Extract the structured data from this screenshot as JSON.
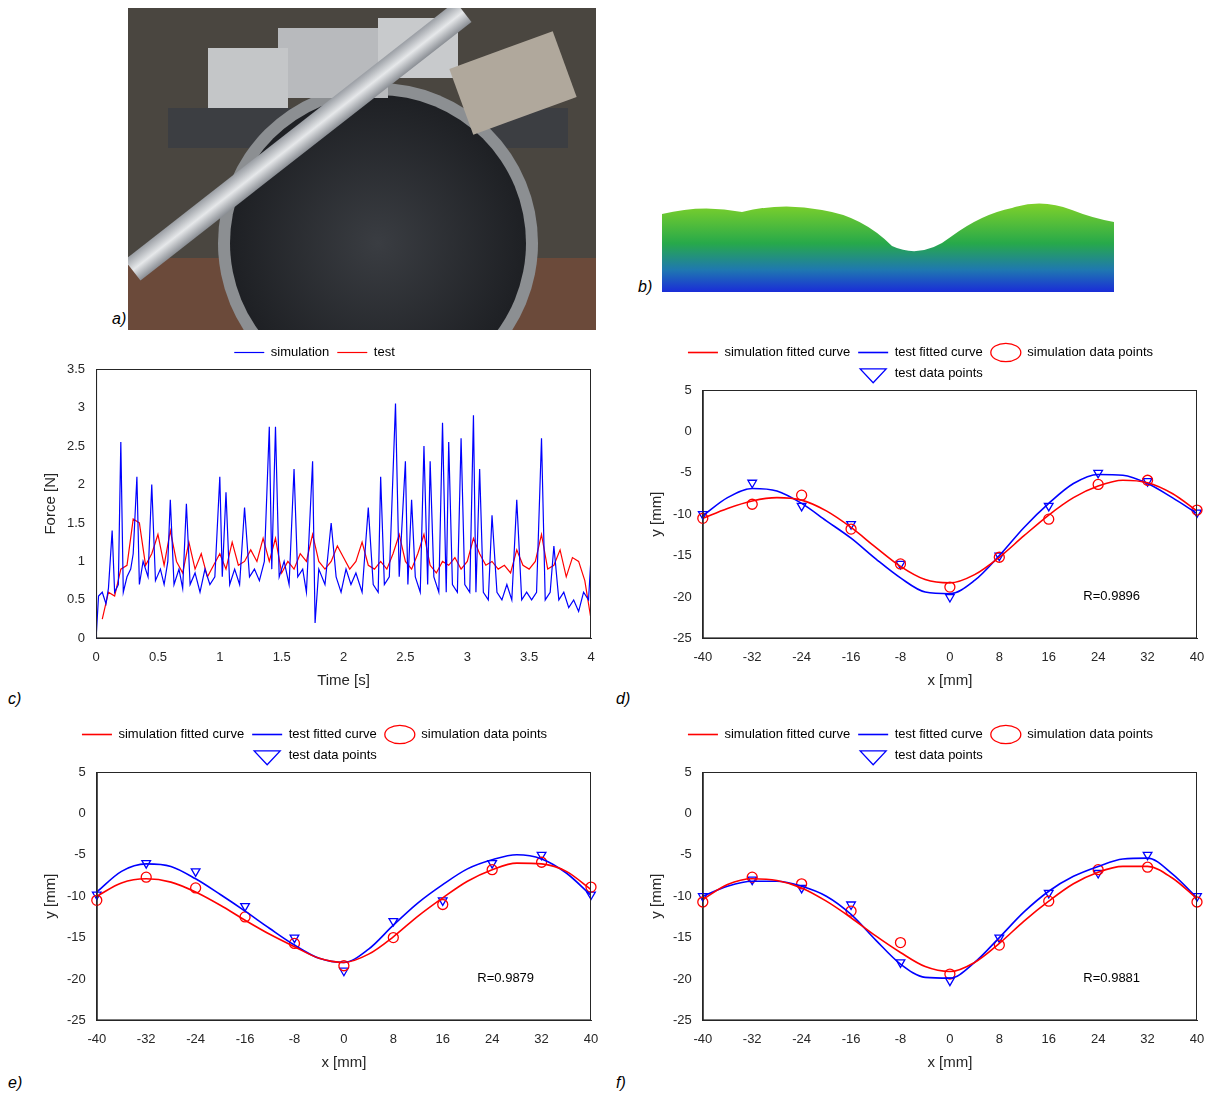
{
  "images": [
    {
      "panel": "a)"
    },
    {
      "panel": "b)"
    }
  ],
  "chart_data": [
    {
      "panel": "c)",
      "type": "line",
      "xlabel": "Time [s]",
      "ylabel": "Force [N]",
      "xlim": [
        0,
        4
      ],
      "xticks": [
        0,
        0.5,
        1,
        1.5,
        2,
        2.5,
        3,
        3.5,
        4
      ],
      "ylim": [
        0,
        3.5
      ],
      "yticks": [
        0,
        0.5,
        1,
        1.5,
        2,
        2.5,
        3,
        3.5
      ],
      "grid": false,
      "legend": "top",
      "series": [
        {
          "name": "simulation",
          "color": "#0000ff",
          "type": "line",
          "line_style": "solid",
          "x": [
            0,
            0.02,
            0.05,
            0.08,
            0.1,
            0.13,
            0.15,
            0.18,
            0.2,
            0.22,
            0.25,
            0.28,
            0.3,
            0.33,
            0.35,
            0.38,
            0.42,
            0.45,
            0.48,
            0.52,
            0.55,
            0.58,
            0.6,
            0.63,
            0.67,
            0.7,
            0.73,
            0.76,
            0.8,
            0.84,
            0.88,
            0.92,
            0.96,
            1.0,
            1.02,
            1.05,
            1.08,
            1.12,
            1.16,
            1.2,
            1.24,
            1.28,
            1.32,
            1.36,
            1.4,
            1.42,
            1.45,
            1.48,
            1.52,
            1.56,
            1.6,
            1.63,
            1.67,
            1.7,
            1.75,
            1.77,
            1.8,
            1.85,
            1.9,
            1.94,
            1.98,
            2.02,
            2.06,
            2.1,
            2.15,
            2.2,
            2.24,
            2.28,
            2.3,
            2.33,
            2.37,
            2.42,
            2.45,
            2.5,
            2.52,
            2.55,
            2.58,
            2.62,
            2.65,
            2.68,
            2.7,
            2.73,
            2.77,
            2.8,
            2.83,
            2.85,
            2.88,
            2.92,
            2.95,
            2.98,
            3.02,
            3.05,
            3.07,
            3.1,
            3.13,
            3.17,
            3.2,
            3.24,
            3.28,
            3.32,
            3.36,
            3.4,
            3.44,
            3.48,
            3.52,
            3.56,
            3.6,
            3.63,
            3.67,
            3.7,
            3.74,
            3.78,
            3.82,
            3.86,
            3.9,
            3.94,
            3.98,
            4.0
          ],
          "values": [
            0,
            0.55,
            0.6,
            0.45,
            0.65,
            1.4,
            0.6,
            0.7,
            2.55,
            0.6,
            0.8,
            0.9,
            1.1,
            2.1,
            0.7,
            1.0,
            0.8,
            2.0,
            0.75,
            0.9,
            0.7,
            1.0,
            1.8,
            0.7,
            0.9,
            0.65,
            1.75,
            0.7,
            0.85,
            0.6,
            0.9,
            0.7,
            0.8,
            2.1,
            0.8,
            1.9,
            0.7,
            0.9,
            0.7,
            1.7,
            0.8,
            0.9,
            0.75,
            1.0,
            2.75,
            0.9,
            2.75,
            0.8,
            1.0,
            0.7,
            2.2,
            0.8,
            0.9,
            0.6,
            2.3,
            0.2,
            0.9,
            0.7,
            1.5,
            0.8,
            0.6,
            0.9,
            0.7,
            0.85,
            0.6,
            1.7,
            0.7,
            0.6,
            2.1,
            0.7,
            0.8,
            3.05,
            0.8,
            2.3,
            0.7,
            1.8,
            0.8,
            0.6,
            2.5,
            0.7,
            2.3,
            0.8,
            0.6,
            2.8,
            0.6,
            2.55,
            0.7,
            0.6,
            2.6,
            0.7,
            0.6,
            2.9,
            0.6,
            2.2,
            0.6,
            0.5,
            1.6,
            0.6,
            0.5,
            0.7,
            0.5,
            1.8,
            0.5,
            0.6,
            0.5,
            0.6,
            2.6,
            0.5,
            0.6,
            1.2,
            0.5,
            0.6,
            0.4,
            0.5,
            0.35,
            0.6,
            0.5,
            1.05
          ]
        },
        {
          "name": "test",
          "color": "#ff0000",
          "type": "line",
          "line_style": "solid",
          "x": [
            0.05,
            0.1,
            0.15,
            0.2,
            0.25,
            0.3,
            0.35,
            0.4,
            0.45,
            0.5,
            0.55,
            0.6,
            0.65,
            0.7,
            0.75,
            0.8,
            0.85,
            0.9,
            0.95,
            1.0,
            1.05,
            1.1,
            1.15,
            1.2,
            1.25,
            1.3,
            1.35,
            1.4,
            1.45,
            1.5,
            1.55,
            1.6,
            1.65,
            1.7,
            1.75,
            1.8,
            1.85,
            1.9,
            1.95,
            2.0,
            2.05,
            2.1,
            2.15,
            2.2,
            2.25,
            2.3,
            2.35,
            2.4,
            2.45,
            2.5,
            2.55,
            2.6,
            2.65,
            2.7,
            2.75,
            2.8,
            2.85,
            2.9,
            2.95,
            3.0,
            3.05,
            3.1,
            3.15,
            3.2,
            3.25,
            3.3,
            3.35,
            3.4,
            3.45,
            3.5,
            3.55,
            3.6,
            3.65,
            3.7,
            3.75,
            3.8,
            3.85,
            3.9,
            3.95,
            4.0
          ],
          "values": [
            0.25,
            0.6,
            0.55,
            0.9,
            0.95,
            1.55,
            1.5,
            0.95,
            1.1,
            1.35,
            0.95,
            1.4,
            1.0,
            0.85,
            1.25,
            0.9,
            1.1,
            0.8,
            0.95,
            1.1,
            0.9,
            1.25,
            0.95,
            1.0,
            1.15,
            1.0,
            1.3,
            1.0,
            1.3,
            0.85,
            1.0,
            0.9,
            1.1,
            1.0,
            1.35,
            1.0,
            0.9,
            1.0,
            1.2,
            1.05,
            0.9,
            1.0,
            1.25,
            0.95,
            0.9,
            1.0,
            0.9,
            1.1,
            1.35,
            1.0,
            0.9,
            1.1,
            1.35,
            0.95,
            0.85,
            1.0,
            0.95,
            1.05,
            0.9,
            1.0,
            1.3,
            1.1,
            0.95,
            1.0,
            0.9,
            0.95,
            0.85,
            1.15,
            0.95,
            0.9,
            1.0,
            1.35,
            0.9,
            0.95,
            1.15,
            0.8,
            1.05,
            1.0,
            0.75,
            0.25
          ]
        }
      ]
    },
    {
      "panel": "d)",
      "type": "line",
      "xlabel": "x [mm]",
      "ylabel": "y [mm]",
      "xlim": [
        -40,
        40
      ],
      "xticks": [
        -40,
        -32,
        -24,
        -16,
        -8,
        0,
        8,
        16,
        24,
        32,
        40
      ],
      "ylim": [
        -25,
        5
      ],
      "yticks": [
        -25,
        -20,
        -15,
        -10,
        -5,
        0,
        5
      ],
      "grid": false,
      "legend": "top",
      "annotation": "R=0.9896",
      "series": [
        {
          "name": "simulation fitted curve",
          "color": "#ff0000",
          "type": "line",
          "line_style": "smooth",
          "x": [
            -40,
            -36,
            -32,
            -28,
            -24,
            -20,
            -16,
            -12,
            -8,
            -4,
            0,
            4,
            8,
            12,
            16,
            20,
            24,
            28,
            32,
            36,
            40
          ],
          "values": [
            -10.5,
            -9.3,
            -8.4,
            -8.0,
            -8.3,
            -9.6,
            -11.6,
            -14.0,
            -16.3,
            -17.9,
            -18.3,
            -17.3,
            -15.2,
            -12.6,
            -10.1,
            -8.0,
            -6.6,
            -5.9,
            -6.2,
            -7.5,
            -9.6
          ]
        },
        {
          "name": "test fitted curve",
          "color": "#0000ff",
          "type": "line",
          "line_style": "smooth",
          "x": [
            -40,
            -36,
            -32,
            -28,
            -24,
            -20,
            -16,
            -12,
            -8,
            -4,
            0,
            4,
            8,
            12,
            16,
            20,
            24,
            28,
            32,
            36,
            40
          ],
          "values": [
            -10.2,
            -8.0,
            -6.9,
            -7.2,
            -8.7,
            -10.8,
            -12.9,
            -15.4,
            -17.7,
            -19.4,
            -19.6,
            -18.0,
            -15.0,
            -11.6,
            -8.7,
            -6.3,
            -5.2,
            -5.3,
            -6.3,
            -8.0,
            -9.9
          ]
        },
        {
          "name": "simulation data points",
          "color": "#ff0000",
          "type": "scatter",
          "marker": "circle",
          "x": [
            -40,
            -32,
            -24,
            -16,
            -8,
            0,
            8,
            16,
            24,
            32,
            40
          ],
          "values": [
            -10.5,
            -8.8,
            -7.7,
            -11.8,
            -16,
            -18.8,
            -15.2,
            -10.6,
            -6.4,
            -5.9,
            -9.5
          ]
        },
        {
          "name": "test data points",
          "color": "#0000ff",
          "type": "scatter",
          "marker": "triangle_down",
          "x": [
            -40,
            -32,
            -24,
            -16,
            -8,
            0,
            8,
            16,
            24,
            32,
            40
          ],
          "values": [
            -10,
            -6.2,
            -9,
            -11.2,
            -16,
            -20,
            -15,
            -9,
            -5,
            -6,
            -9.8
          ]
        }
      ]
    },
    {
      "panel": "e)",
      "type": "line",
      "xlabel": "x [mm]",
      "ylabel": "y [mm]",
      "xlim": [
        -40,
        40
      ],
      "xticks": [
        -40,
        -32,
        -24,
        -16,
        -8,
        0,
        8,
        16,
        24,
        32,
        40
      ],
      "ylim": [
        -25,
        5
      ],
      "yticks": [
        -25,
        -20,
        -15,
        -10,
        -5,
        0,
        5
      ],
      "grid": false,
      "legend": "top",
      "annotation": "R=0.9879",
      "series": [
        {
          "name": "simulation fitted curve",
          "color": "#ff0000",
          "type": "line",
          "line_style": "smooth",
          "x": [
            -40,
            -36,
            -32,
            -28,
            -24,
            -20,
            -16,
            -12,
            -8,
            -4,
            0,
            4,
            8,
            12,
            16,
            20,
            24,
            28,
            32,
            36,
            40
          ],
          "values": [
            -10.0,
            -8.4,
            -7.9,
            -8.3,
            -9.5,
            -11.1,
            -12.9,
            -14.6,
            -16.1,
            -17.5,
            -18.0,
            -17.0,
            -14.9,
            -12.4,
            -10.2,
            -8.2,
            -6.8,
            -6.0,
            -6.1,
            -7.0,
            -9.2
          ]
        },
        {
          "name": "test fitted curve",
          "color": "#0000ff",
          "type": "line",
          "line_style": "smooth",
          "x": [
            -40,
            -36,
            -32,
            -28,
            -24,
            -20,
            -16,
            -12,
            -8,
            -4,
            0,
            4,
            8,
            12,
            16,
            20,
            24,
            28,
            32,
            36,
            40
          ],
          "values": [
            -9.5,
            -7.0,
            -6.1,
            -6.4,
            -7.9,
            -9.8,
            -11.8,
            -13.9,
            -15.9,
            -17.5,
            -18.0,
            -16.4,
            -13.5,
            -10.8,
            -8.6,
            -6.7,
            -5.6,
            -5.0,
            -5.5,
            -7.2,
            -9.9
          ]
        },
        {
          "name": "simulation data points",
          "color": "#ff0000",
          "type": "scatter",
          "marker": "circle",
          "x": [
            -40,
            -32,
            -24,
            -16,
            -8,
            0,
            8,
            16,
            24,
            32,
            40
          ],
          "values": [
            -10.5,
            -7.7,
            -9,
            -12.5,
            -15.7,
            -18.4,
            -15,
            -11,
            -6.8,
            -5.9,
            -8.9
          ]
        },
        {
          "name": "test data points",
          "color": "#0000ff",
          "type": "scatter",
          "marker": "triangle_down",
          "x": [
            -40,
            -32,
            -24,
            -16,
            -8,
            0,
            8,
            16,
            24,
            32,
            40
          ],
          "values": [
            -9.8,
            -6,
            -7,
            -11.2,
            -15,
            -19,
            -13,
            -10.5,
            -6,
            -5,
            -9.8
          ]
        }
      ]
    },
    {
      "panel": "f)",
      "type": "line",
      "xlabel": "x [mm]",
      "ylabel": "y [mm]",
      "xlim": [
        -40,
        40
      ],
      "xticks": [
        -40,
        -32,
        -24,
        -16,
        -8,
        0,
        8,
        16,
        24,
        32,
        40
      ],
      "ylim": [
        -25,
        5
      ],
      "yticks": [
        -25,
        -20,
        -15,
        -10,
        -5,
        0,
        5
      ],
      "grid": false,
      "legend": "top",
      "annotation": "R=0.9881",
      "series": [
        {
          "name": "simulation fitted curve",
          "color": "#ff0000",
          "type": "line",
          "line_style": "smooth",
          "x": [
            -40,
            -36,
            -32,
            -28,
            -24,
            -20,
            -16,
            -12,
            -8,
            -4,
            0,
            4,
            8,
            12,
            16,
            20,
            24,
            28,
            32,
            36,
            40
          ],
          "values": [
            -10.4,
            -8.6,
            -7.9,
            -8.1,
            -9.0,
            -10.6,
            -12.6,
            -14.8,
            -16.8,
            -18.5,
            -19.1,
            -18.0,
            -15.7,
            -13.0,
            -10.6,
            -8.5,
            -7.1,
            -6.4,
            -6.4,
            -7.8,
            -10.3
          ]
        },
        {
          "name": "test fitted curve",
          "color": "#0000ff",
          "type": "line",
          "line_style": "smooth",
          "x": [
            -40,
            -36,
            -32,
            -28,
            -24,
            -20,
            -16,
            -12,
            -8,
            -4,
            0,
            4,
            8,
            12,
            16,
            20,
            24,
            28,
            32,
            36,
            40
          ],
          "values": [
            -10.0,
            -8.8,
            -8.2,
            -8.2,
            -8.8,
            -10.0,
            -12.2,
            -15.3,
            -18.2,
            -19.8,
            -19.9,
            -18.0,
            -15.0,
            -11.9,
            -9.4,
            -7.6,
            -6.4,
            -5.5,
            -5.4,
            -7.3,
            -10.2
          ]
        },
        {
          "name": "simulation data points",
          "color": "#ff0000",
          "type": "scatter",
          "marker": "circle",
          "x": [
            -40,
            -32,
            -24,
            -16,
            -8,
            0,
            8,
            16,
            24,
            32,
            40
          ],
          "values": [
            -10.7,
            -7.7,
            -8.5,
            -11.8,
            -15.6,
            -19.4,
            -15.9,
            -10.6,
            -6.8,
            -6.5,
            -10.7
          ]
        },
        {
          "name": "test data points",
          "color": "#0000ff",
          "type": "scatter",
          "marker": "triangle_down",
          "x": [
            -40,
            -32,
            -24,
            -16,
            -8,
            0,
            8,
            16,
            24,
            32,
            40
          ],
          "values": [
            -10,
            -8,
            -9,
            -11,
            -18,
            -20.2,
            -15,
            -9.6,
            -7.2,
            -5,
            -10
          ]
        }
      ]
    }
  ]
}
